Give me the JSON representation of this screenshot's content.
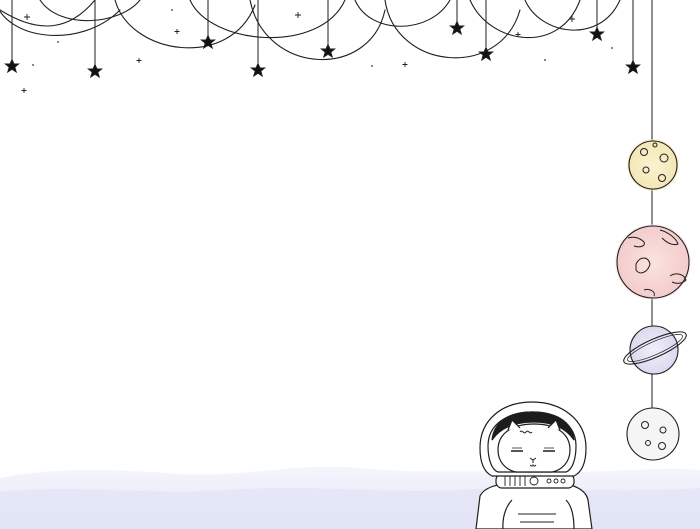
{
  "illustration": {
    "kind": "hand-drawn-space-wallpaper",
    "background_color": "#ffffff",
    "line_color": "#1a1a1a",
    "ground_haze_colors": [
      "#eef0fb",
      "#e4e6f7",
      "#dde1f5"
    ],
    "planet_colors": {
      "top-moon": "#f6eec0",
      "pink-planet": "#f6d3d3",
      "ringed-planet": "#e6e2f4",
      "bottom-moon": "#f2f2f2"
    }
  }
}
